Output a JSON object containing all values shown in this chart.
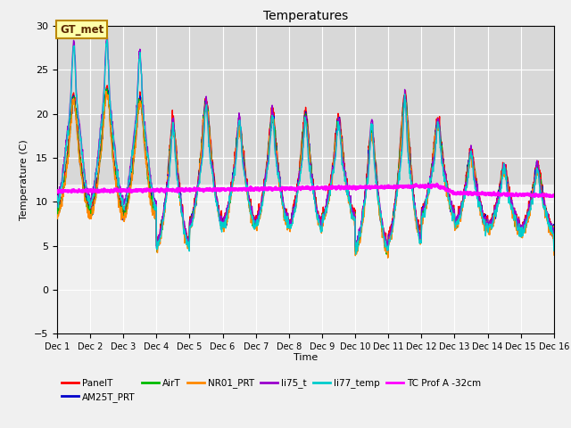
{
  "title": "Temperatures",
  "xlabel": "Time",
  "ylabel": "Temperature (C)",
  "ylim": [
    -5,
    30
  ],
  "xlim": [
    0,
    15
  ],
  "xtick_labels": [
    "Dec 1",
    "Dec 2",
    "Dec 3",
    "Dec 4",
    "Dec 5",
    "Dec 6",
    "Dec 7",
    "Dec 8",
    "Dec 9",
    "Dec 10",
    "Dec 11",
    "Dec 12",
    "Dec 13",
    "Dec 14",
    "Dec 15",
    "Dec 16"
  ],
  "yticks": [
    -5,
    0,
    5,
    10,
    15,
    20,
    25,
    30
  ],
  "series": {
    "PanelT": {
      "color": "#ff0000",
      "lw": 1.0
    },
    "AM25T_PRT": {
      "color": "#0000cc",
      "lw": 1.0
    },
    "AirT": {
      "color": "#00bb00",
      "lw": 1.0
    },
    "NR01_PRT": {
      "color": "#ff8800",
      "lw": 1.0
    },
    "li75_t": {
      "color": "#9900cc",
      "lw": 1.0
    },
    "li77_temp": {
      "color": "#00cccc",
      "lw": 1.0
    },
    "TC Prof A -32cm": {
      "color": "#ff00ff",
      "lw": 2.2
    }
  },
  "annotation_text": "GT_met",
  "shade_ymin": 12.0,
  "shade_ymax": 30.0,
  "shade_color": "#d8d8d8",
  "bg_color": "#f0f0f0",
  "plot_bg": "#f0f0f0",
  "grid_color": "white"
}
